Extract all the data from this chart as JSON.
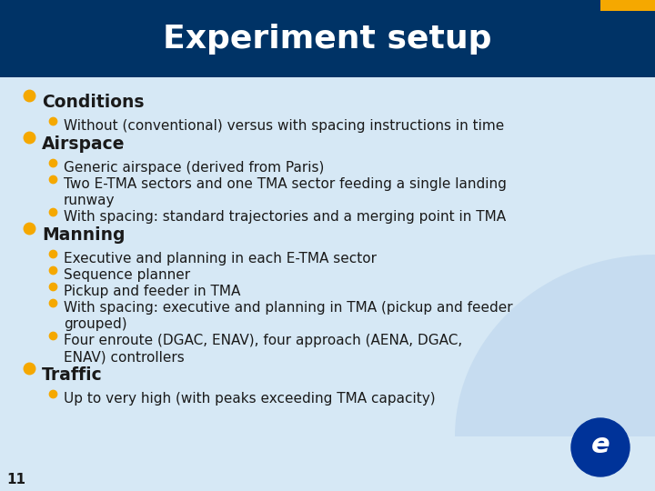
{
  "title": "Experiment setup",
  "title_bg": "#003366",
  "title_color": "#ffffff",
  "body_bg": "#d6e8f5",
  "bullet_color": "#f5a800",
  "text_color": "#1a1a1a",
  "slide_number": "11",
  "accent_bar_color": "#f5a800",
  "accent_bar2_color": "#003366",
  "content": [
    {
      "level": 1,
      "text": "Conditions"
    },
    {
      "level": 2,
      "text": "Without (conventional) versus with spacing instructions in time"
    },
    {
      "level": 1,
      "text": "Airspace"
    },
    {
      "level": 2,
      "text": "Generic airspace (derived from Paris)"
    },
    {
      "level": 2,
      "text": "Two E-TMA sectors and one TMA sector feeding a single landing\nrunway"
    },
    {
      "level": 2,
      "text": "With spacing: standard trajectories and a merging point in TMA"
    },
    {
      "level": 1,
      "text": "Manning"
    },
    {
      "level": 2,
      "text": "Executive and planning in each E-TMA sector"
    },
    {
      "level": 2,
      "text": "Sequence planner"
    },
    {
      "level": 2,
      "text": "Pickup and feeder in TMA"
    },
    {
      "level": 2,
      "text": "With spacing: executive and planning in TMA (pickup and feeder\ngrouped)"
    },
    {
      "level": 2,
      "text": "Four enroute (DGAC, ENAV), four approach (AENA, DGAC,\nENAV) controllers"
    },
    {
      "level": 1,
      "text": "Traffic"
    },
    {
      "level": 2,
      "text": "Up to very high (with peaks exceeding TMA capacity)"
    }
  ]
}
